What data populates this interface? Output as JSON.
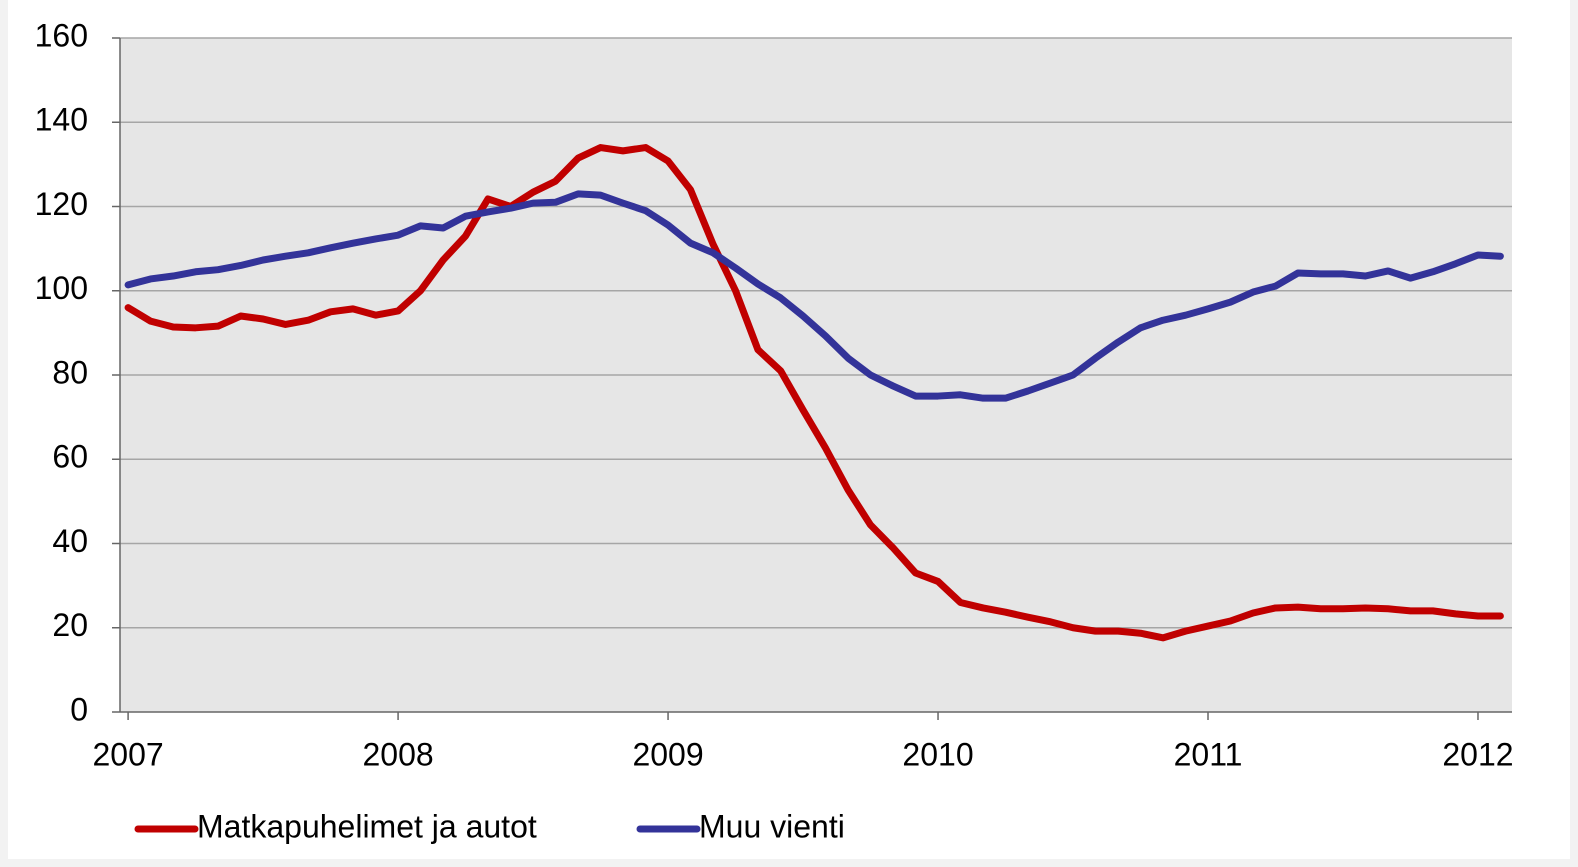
{
  "chart_data": {
    "type": "line",
    "x": [
      2007,
      2007.083,
      2007.167,
      2007.25,
      2007.333,
      2007.417,
      2007.5,
      2007.583,
      2007.667,
      2007.75,
      2007.833,
      2007.917,
      2008,
      2008.083,
      2008.167,
      2008.25,
      2008.333,
      2008.417,
      2008.5,
      2008.583,
      2008.667,
      2008.75,
      2008.833,
      2008.917,
      2009,
      2009.083,
      2009.167,
      2009.25,
      2009.333,
      2009.417,
      2009.5,
      2009.583,
      2009.667,
      2009.75,
      2009.833,
      2009.917,
      2010,
      2010.083,
      2010.167,
      2010.25,
      2010.333,
      2010.417,
      2010.5,
      2010.583,
      2010.667,
      2010.75,
      2010.833,
      2010.917,
      2011,
      2011.083,
      2011.167,
      2011.25,
      2011.333,
      2011.417,
      2011.5,
      2011.583,
      2011.667,
      2011.75,
      2011.833,
      2011.917,
      2012,
      2012.083
    ],
    "series": [
      {
        "name": "Matkapuhelimet ja autot",
        "color": "#c00000",
        "values": [
          96,
          92.8,
          91.4,
          91.2,
          91.6,
          94,
          93.3,
          92,
          93,
          95,
          95.7,
          94.2,
          95.2,
          100,
          107.3,
          113,
          121.8,
          120,
          123.4,
          126,
          131.5,
          134,
          133.2,
          134,
          130.8,
          124,
          111,
          100,
          86,
          81,
          71.7,
          62.7,
          52.7,
          44.4,
          39,
          33,
          31,
          26,
          24.7,
          23.7,
          22.5,
          21.4,
          20,
          19.2,
          19.2,
          18.7,
          17.6,
          19.2,
          20.4,
          21.6,
          23.5,
          24.7,
          24.9,
          24.5,
          24.5,
          24.7,
          24.5,
          24,
          24,
          23.3,
          22.8,
          22.8
        ]
      },
      {
        "name": "Muu vienti",
        "color": "#333399",
        "values": [
          101.4,
          102.8,
          103.5,
          104.5,
          105,
          106,
          107.3,
          108.2,
          109,
          110.2,
          111.3,
          112.3,
          113.2,
          115.4,
          114.9,
          117.7,
          118.7,
          119.6,
          120.8,
          121,
          123,
          122.7,
          120.8,
          119,
          115.6,
          111.3,
          109,
          105.4,
          101.6,
          98.3,
          94,
          89.3,
          84,
          80,
          77.4,
          75,
          75,
          75.3,
          74.5,
          74.5,
          76.2,
          78.1,
          80,
          84,
          87.8,
          91.2,
          93,
          94.2,
          95.7,
          97.3,
          99.7,
          101.1,
          104.2,
          104,
          104,
          103.5,
          104.7,
          103,
          104.5,
          106.4,
          108.5,
          108.2
        ]
      }
    ],
    "xlim": [
      2006.97,
      2012.126
    ],
    "xticks": [
      2007,
      2008,
      2009,
      2010,
      2011,
      2012
    ],
    "ylim": [
      0,
      160
    ],
    "yticks": [
      0,
      20,
      40,
      60,
      80,
      100,
      120,
      140,
      160
    ],
    "grid": true,
    "legend": "bottom"
  }
}
